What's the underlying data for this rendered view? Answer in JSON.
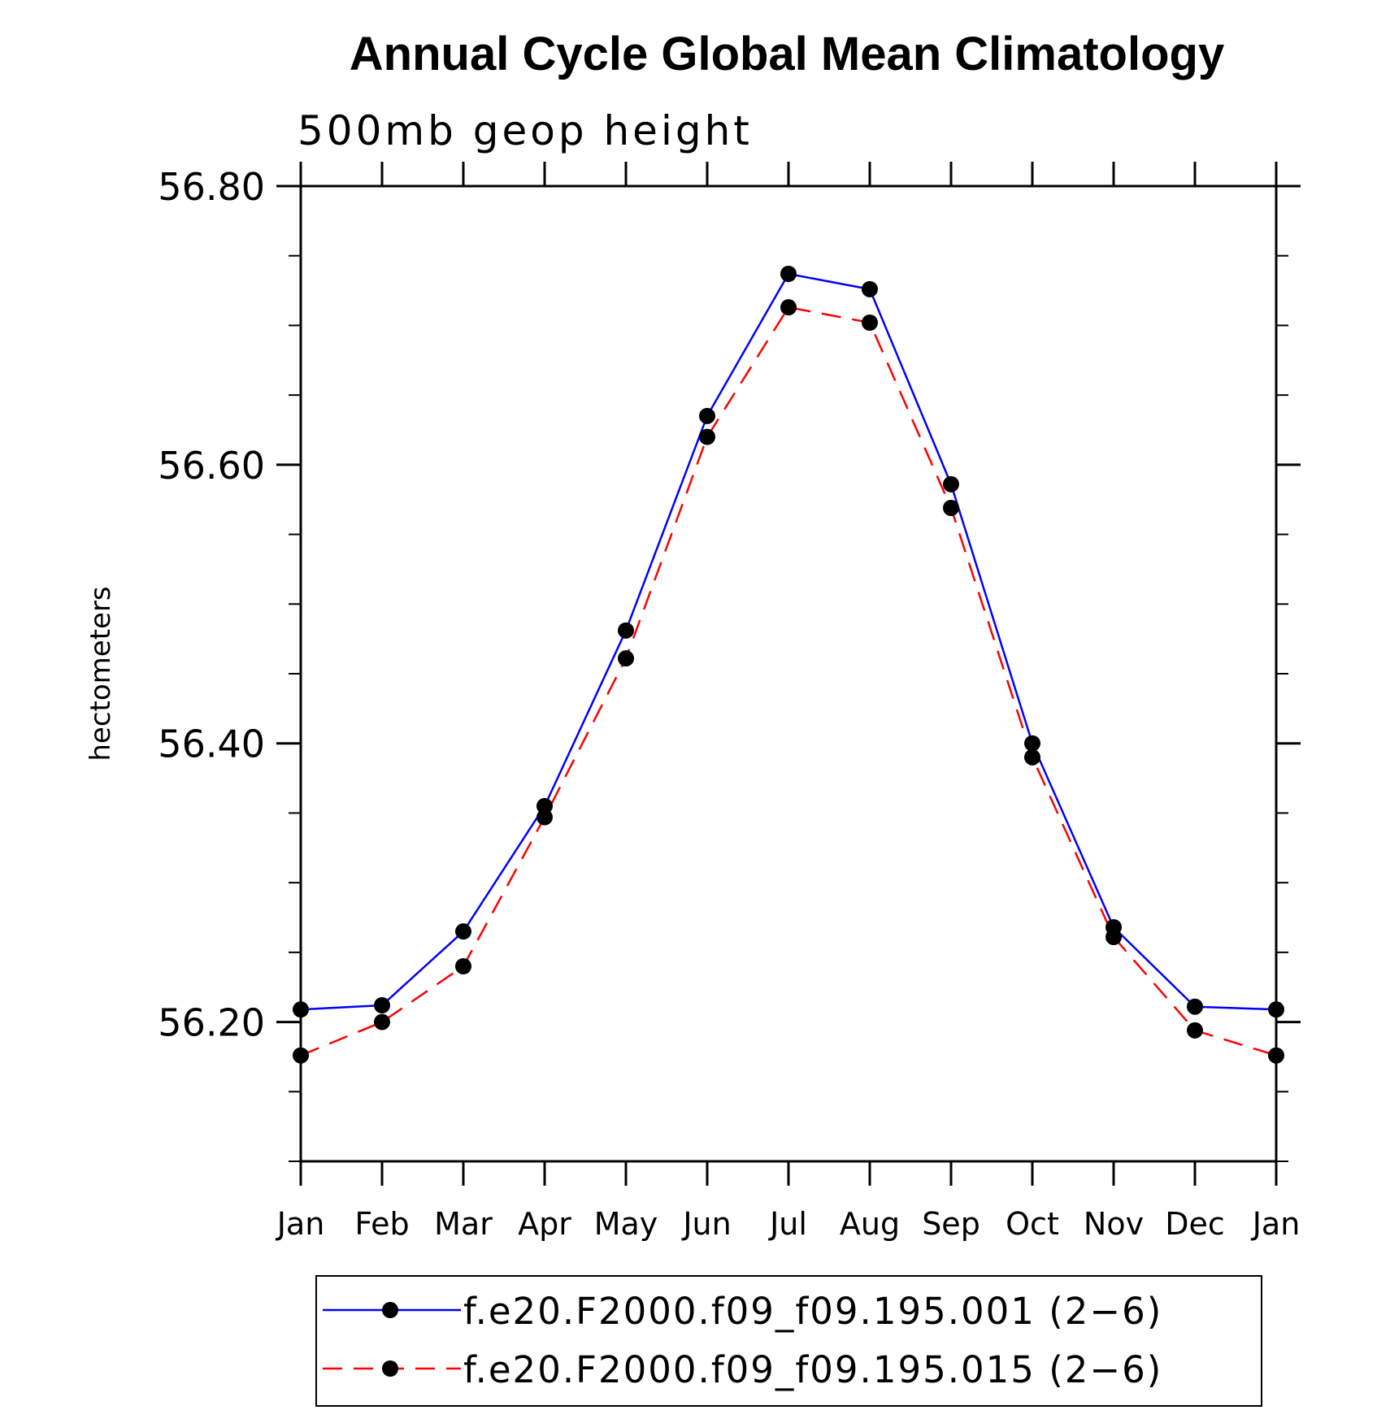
{
  "chart_data": {
    "type": "line",
    "title": "Annual Cycle Global Mean Climatology",
    "subtitle": "500mb geop height",
    "xlabel": "",
    "ylabel": "hectometers",
    "categories": [
      "Jan",
      "Feb",
      "Mar",
      "Apr",
      "May",
      "Jun",
      "Jul",
      "Aug",
      "Sep",
      "Oct",
      "Nov",
      "Dec",
      "Jan"
    ],
    "ylim": [
      56.1,
      56.8
    ],
    "yticks": [
      56.2,
      56.4,
      56.6,
      56.8
    ],
    "ytick_labels": [
      "56.20",
      "56.40",
      "56.60",
      "56.80"
    ],
    "yminor_step": 0.05,
    "legend_position": "bottom",
    "series": [
      {
        "name": "f.e20.F2000.f09_f09.195.001 (2−6)",
        "color": "#0000ff",
        "dash": "solid",
        "marker": "filled-circle",
        "values": [
          56.209,
          56.212,
          56.265,
          56.355,
          56.481,
          56.635,
          56.737,
          56.726,
          56.586,
          56.4,
          56.268,
          56.211,
          56.209
        ]
      },
      {
        "name": "f.e20.F2000.f09_f09.195.015 (2−6)",
        "color": "#ff0000",
        "dash": "dashed",
        "marker": "filled-circle",
        "values": [
          56.176,
          56.2,
          56.24,
          56.347,
          56.461,
          56.62,
          56.713,
          56.702,
          56.569,
          56.39,
          56.261,
          56.194,
          56.176
        ]
      }
    ]
  }
}
